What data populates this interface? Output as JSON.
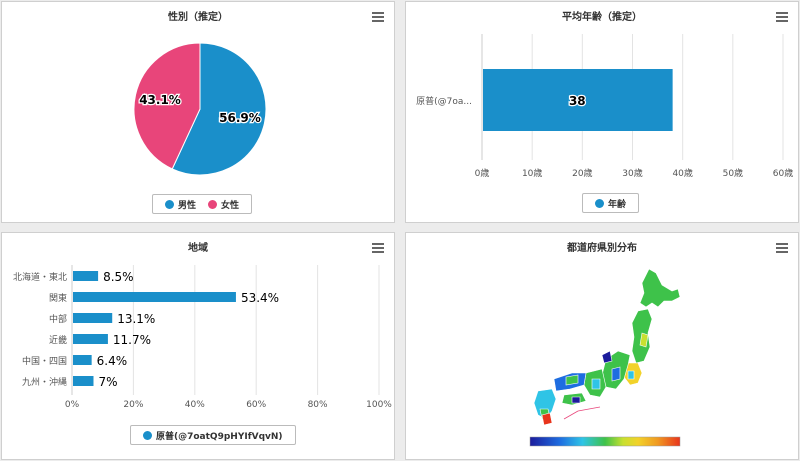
{
  "panels": {
    "gender": {
      "title": "性別（推定）"
    },
    "age": {
      "title": "平均年齢（推定）"
    },
    "region": {
      "title": "地域"
    },
    "prefecture": {
      "title": "都道府県別分布"
    }
  },
  "colors": {
    "blue": "#1a8fca",
    "pink": "#e8457a"
  },
  "chart_data": [
    {
      "type": "pie",
      "title": "性別（推定）",
      "labels": [
        "男性",
        "女性"
      ],
      "values": [
        56.9,
        43.1
      ],
      "value_labels": [
        "56.9%",
        "43.1%"
      ],
      "colors": [
        "#1a8fca",
        "#e8457a"
      ],
      "legend": "bottom"
    },
    {
      "type": "bar",
      "title": "平均年齢（推定）",
      "orientation": "horizontal",
      "categories": [
        "原普(@7oa..."
      ],
      "series": [
        {
          "name": "年齢",
          "values": [
            38
          ]
        }
      ],
      "value_labels": [
        "38"
      ],
      "xlim": [
        0,
        60
      ],
      "ticks": [
        0,
        10,
        20,
        30,
        40,
        50,
        60
      ],
      "tick_labels": [
        "0歳",
        "10歳",
        "20歳",
        "30歳",
        "40歳",
        "50歳",
        "60歳"
      ],
      "grid": true,
      "legend": "bottom"
    },
    {
      "type": "bar",
      "title": "地域",
      "orientation": "horizontal",
      "categories": [
        "北海道・東北",
        "関東",
        "中部",
        "近畿",
        "中国・四国",
        "九州・沖縄"
      ],
      "series": [
        {
          "name": "原普(@7oatQ9pHYIfVqvN)",
          "values": [
            8.5,
            53.4,
            13.1,
            11.7,
            6.4,
            7
          ]
        }
      ],
      "value_labels": [
        "8.5%",
        "53.4%",
        "13.1%",
        "11.7%",
        "6.4%",
        "7%"
      ],
      "xlim": [
        0,
        100
      ],
      "ticks": [
        0,
        20,
        40,
        60,
        80,
        100
      ],
      "tick_labels": [
        "0%",
        "20%",
        "40%",
        "60%",
        "80%",
        "100%"
      ],
      "grid": true,
      "legend": "bottom"
    },
    {
      "type": "heatmap",
      "title": "都道府県別分布",
      "map": "japan-prefectures",
      "colorscale": [
        "#1c1c9c",
        "#1e6de0",
        "#2fc4e6",
        "#3ec24a",
        "#c8e030",
        "#f2d22a",
        "#f09a22",
        "#e8341c"
      ]
    }
  ]
}
